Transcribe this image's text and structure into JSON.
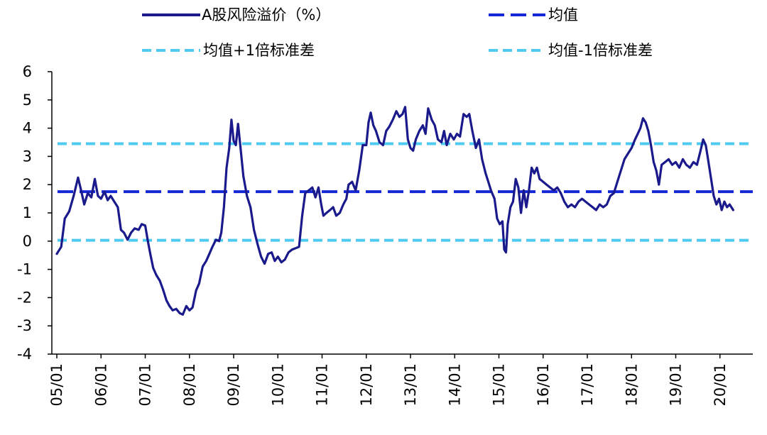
{
  "chart_data": {
    "type": "line",
    "title": "",
    "xlabel": "",
    "ylabel": "",
    "ylim": [
      -4,
      6
    ],
    "yticks": [
      6,
      5,
      4,
      3,
      2,
      1,
      0,
      -1,
      -2,
      -3,
      -4
    ],
    "xlim": [
      0,
      15.82
    ],
    "xticks": [
      "05/01",
      "06/01",
      "07/01",
      "08/01",
      "09/01",
      "10/01",
      "11/01",
      "12/01",
      "13/01",
      "14/01",
      "15/01",
      "16/01",
      "17/01",
      "18/01",
      "19/01",
      "20/01"
    ],
    "x_unit_note": "x = years since 05/01",
    "grid": false,
    "legend_position": "top",
    "series": [
      {
        "name": "A股风险溢价（%）",
        "style": "solid",
        "color": "#1a1a8c",
        "points": [
          [
            0.0,
            -0.45
          ],
          [
            0.1,
            -0.2
          ],
          [
            0.18,
            0.8
          ],
          [
            0.28,
            1.05
          ],
          [
            0.38,
            1.6
          ],
          [
            0.48,
            2.25
          ],
          [
            0.55,
            1.8
          ],
          [
            0.62,
            1.3
          ],
          [
            0.7,
            1.7
          ],
          [
            0.78,
            1.55
          ],
          [
            0.86,
            2.2
          ],
          [
            0.93,
            1.6
          ],
          [
            1.0,
            1.5
          ],
          [
            1.08,
            1.75
          ],
          [
            1.15,
            1.45
          ],
          [
            1.22,
            1.6
          ],
          [
            1.3,
            1.4
          ],
          [
            1.38,
            1.2
          ],
          [
            1.45,
            0.4
          ],
          [
            1.52,
            0.3
          ],
          [
            1.6,
            0.05
          ],
          [
            1.68,
            0.3
          ],
          [
            1.76,
            0.45
          ],
          [
            1.85,
            0.4
          ],
          [
            1.92,
            0.6
          ],
          [
            2.0,
            0.55
          ],
          [
            2.06,
            0.0
          ],
          [
            2.12,
            -0.5
          ],
          [
            2.18,
            -0.95
          ],
          [
            2.25,
            -1.2
          ],
          [
            2.33,
            -1.4
          ],
          [
            2.4,
            -1.7
          ],
          [
            2.48,
            -2.1
          ],
          [
            2.55,
            -2.3
          ],
          [
            2.62,
            -2.45
          ],
          [
            2.7,
            -2.4
          ],
          [
            2.78,
            -2.55
          ],
          [
            2.85,
            -2.6
          ],
          [
            2.93,
            -2.3
          ],
          [
            3.0,
            -2.45
          ],
          [
            3.07,
            -2.35
          ],
          [
            3.15,
            -1.75
          ],
          [
            3.22,
            -1.5
          ],
          [
            3.3,
            -0.9
          ],
          [
            3.38,
            -0.7
          ],
          [
            3.45,
            -0.45
          ],
          [
            3.52,
            -0.2
          ],
          [
            3.6,
            0.05
          ],
          [
            3.67,
            0.0
          ],
          [
            3.72,
            0.3
          ],
          [
            3.78,
            1.2
          ],
          [
            3.84,
            2.6
          ],
          [
            3.9,
            3.3
          ],
          [
            3.95,
            4.3
          ],
          [
            4.0,
            3.55
          ],
          [
            4.05,
            3.4
          ],
          [
            4.1,
            4.15
          ],
          [
            4.15,
            3.4
          ],
          [
            4.22,
            2.3
          ],
          [
            4.3,
            1.6
          ],
          [
            4.38,
            1.2
          ],
          [
            4.46,
            0.4
          ],
          [
            4.54,
            -0.1
          ],
          [
            4.62,
            -0.55
          ],
          [
            4.7,
            -0.8
          ],
          [
            4.78,
            -0.45
          ],
          [
            4.86,
            -0.4
          ],
          [
            4.93,
            -0.7
          ],
          [
            5.0,
            -0.55
          ],
          [
            5.08,
            -0.75
          ],
          [
            5.16,
            -0.65
          ],
          [
            5.24,
            -0.4
          ],
          [
            5.32,
            -0.3
          ],
          [
            5.4,
            -0.25
          ],
          [
            5.48,
            -0.2
          ],
          [
            5.55,
            0.9
          ],
          [
            5.62,
            1.7
          ],
          [
            5.7,
            1.8
          ],
          [
            5.78,
            1.9
          ],
          [
            5.85,
            1.55
          ],
          [
            5.92,
            1.9
          ],
          [
            5.98,
            1.3
          ],
          [
            6.03,
            0.9
          ],
          [
            6.1,
            1.0
          ],
          [
            6.18,
            1.1
          ],
          [
            6.25,
            1.2
          ],
          [
            6.32,
            0.9
          ],
          [
            6.4,
            1.0
          ],
          [
            6.48,
            1.3
          ],
          [
            6.55,
            1.5
          ],
          [
            6.6,
            2.0
          ],
          [
            6.68,
            2.1
          ],
          [
            6.76,
            1.8
          ],
          [
            6.84,
            2.5
          ],
          [
            6.92,
            3.4
          ],
          [
            7.0,
            3.4
          ],
          [
            7.05,
            4.2
          ],
          [
            7.1,
            4.55
          ],
          [
            7.16,
            4.1
          ],
          [
            7.22,
            3.9
          ],
          [
            7.3,
            3.5
          ],
          [
            7.38,
            3.4
          ],
          [
            7.45,
            3.9
          ],
          [
            7.52,
            4.05
          ],
          [
            7.6,
            4.3
          ],
          [
            7.68,
            4.6
          ],
          [
            7.75,
            4.4
          ],
          [
            7.82,
            4.5
          ],
          [
            7.88,
            4.75
          ],
          [
            7.94,
            3.6
          ],
          [
            8.0,
            3.3
          ],
          [
            8.06,
            3.2
          ],
          [
            8.12,
            3.6
          ],
          [
            8.2,
            3.9
          ],
          [
            8.28,
            4.1
          ],
          [
            8.34,
            3.8
          ],
          [
            8.4,
            4.7
          ],
          [
            8.48,
            4.3
          ],
          [
            8.55,
            4.1
          ],
          [
            8.62,
            3.6
          ],
          [
            8.7,
            3.5
          ],
          [
            8.76,
            3.9
          ],
          [
            8.82,
            3.4
          ],
          [
            8.9,
            3.8
          ],
          [
            8.98,
            3.6
          ],
          [
            9.05,
            3.8
          ],
          [
            9.12,
            3.7
          ],
          [
            9.2,
            4.5
          ],
          [
            9.27,
            4.4
          ],
          [
            9.33,
            4.5
          ],
          [
            9.4,
            3.9
          ],
          [
            9.48,
            3.3
          ],
          [
            9.55,
            3.6
          ],
          [
            9.62,
            2.9
          ],
          [
            9.7,
            2.4
          ],
          [
            9.76,
            2.1
          ],
          [
            9.82,
            1.8
          ],
          [
            9.9,
            1.5
          ],
          [
            9.96,
            0.8
          ],
          [
            10.02,
            0.6
          ],
          [
            10.08,
            0.7
          ],
          [
            10.12,
            -0.3
          ],
          [
            10.16,
            -0.4
          ],
          [
            10.2,
            0.6
          ],
          [
            10.26,
            1.2
          ],
          [
            10.32,
            1.4
          ],
          [
            10.38,
            2.2
          ],
          [
            10.44,
            1.9
          ],
          [
            10.5,
            1.0
          ],
          [
            10.56,
            1.8
          ],
          [
            10.62,
            1.2
          ],
          [
            10.68,
            1.8
          ],
          [
            10.74,
            2.6
          ],
          [
            10.8,
            2.4
          ],
          [
            10.86,
            2.6
          ],
          [
            10.92,
            2.2
          ],
          [
            11.0,
            2.1
          ],
          [
            11.08,
            2.0
          ],
          [
            11.16,
            1.9
          ],
          [
            11.24,
            1.8
          ],
          [
            11.32,
            1.9
          ],
          [
            11.4,
            1.7
          ],
          [
            11.48,
            1.4
          ],
          [
            11.56,
            1.2
          ],
          [
            11.64,
            1.3
          ],
          [
            11.72,
            1.2
          ],
          [
            11.8,
            1.4
          ],
          [
            11.88,
            1.5
          ],
          [
            11.96,
            1.4
          ],
          [
            12.04,
            1.3
          ],
          [
            12.12,
            1.2
          ],
          [
            12.2,
            1.1
          ],
          [
            12.28,
            1.3
          ],
          [
            12.36,
            1.2
          ],
          [
            12.44,
            1.3
          ],
          [
            12.52,
            1.6
          ],
          [
            12.6,
            1.7
          ],
          [
            12.68,
            2.1
          ],
          [
            12.76,
            2.5
          ],
          [
            12.84,
            2.9
          ],
          [
            12.92,
            3.1
          ],
          [
            13.0,
            3.3
          ],
          [
            13.08,
            3.6
          ],
          [
            13.14,
            3.8
          ],
          [
            13.2,
            4.0
          ],
          [
            13.26,
            4.35
          ],
          [
            13.32,
            4.2
          ],
          [
            13.38,
            3.9
          ],
          [
            13.44,
            3.4
          ],
          [
            13.5,
            2.8
          ],
          [
            13.56,
            2.5
          ],
          [
            13.62,
            2.0
          ],
          [
            13.68,
            2.7
          ],
          [
            13.76,
            2.8
          ],
          [
            13.84,
            2.9
          ],
          [
            13.92,
            2.7
          ],
          [
            14.0,
            2.8
          ],
          [
            14.08,
            2.6
          ],
          [
            14.16,
            2.9
          ],
          [
            14.24,
            2.7
          ],
          [
            14.32,
            2.6
          ],
          [
            14.4,
            2.8
          ],
          [
            14.48,
            2.7
          ],
          [
            14.56,
            3.2
          ],
          [
            14.62,
            3.6
          ],
          [
            14.68,
            3.4
          ],
          [
            14.74,
            2.8
          ],
          [
            14.8,
            2.2
          ],
          [
            14.86,
            1.6
          ],
          [
            14.92,
            1.3
          ],
          [
            14.98,
            1.5
          ],
          [
            15.04,
            1.1
          ],
          [
            15.1,
            1.4
          ],
          [
            15.16,
            1.2
          ],
          [
            15.22,
            1.3
          ],
          [
            15.3,
            1.1
          ]
        ]
      },
      {
        "name": "均值",
        "style": "long-dash",
        "color": "#1428d8",
        "value": 1.75
      },
      {
        "name": "均值+1倍标准差",
        "style": "dash",
        "color": "#4fcbf2",
        "value": 3.45
      },
      {
        "name": "均值-1倍标准差",
        "style": "dash",
        "color": "#4fcbf2",
        "value": 0.03
      }
    ]
  }
}
